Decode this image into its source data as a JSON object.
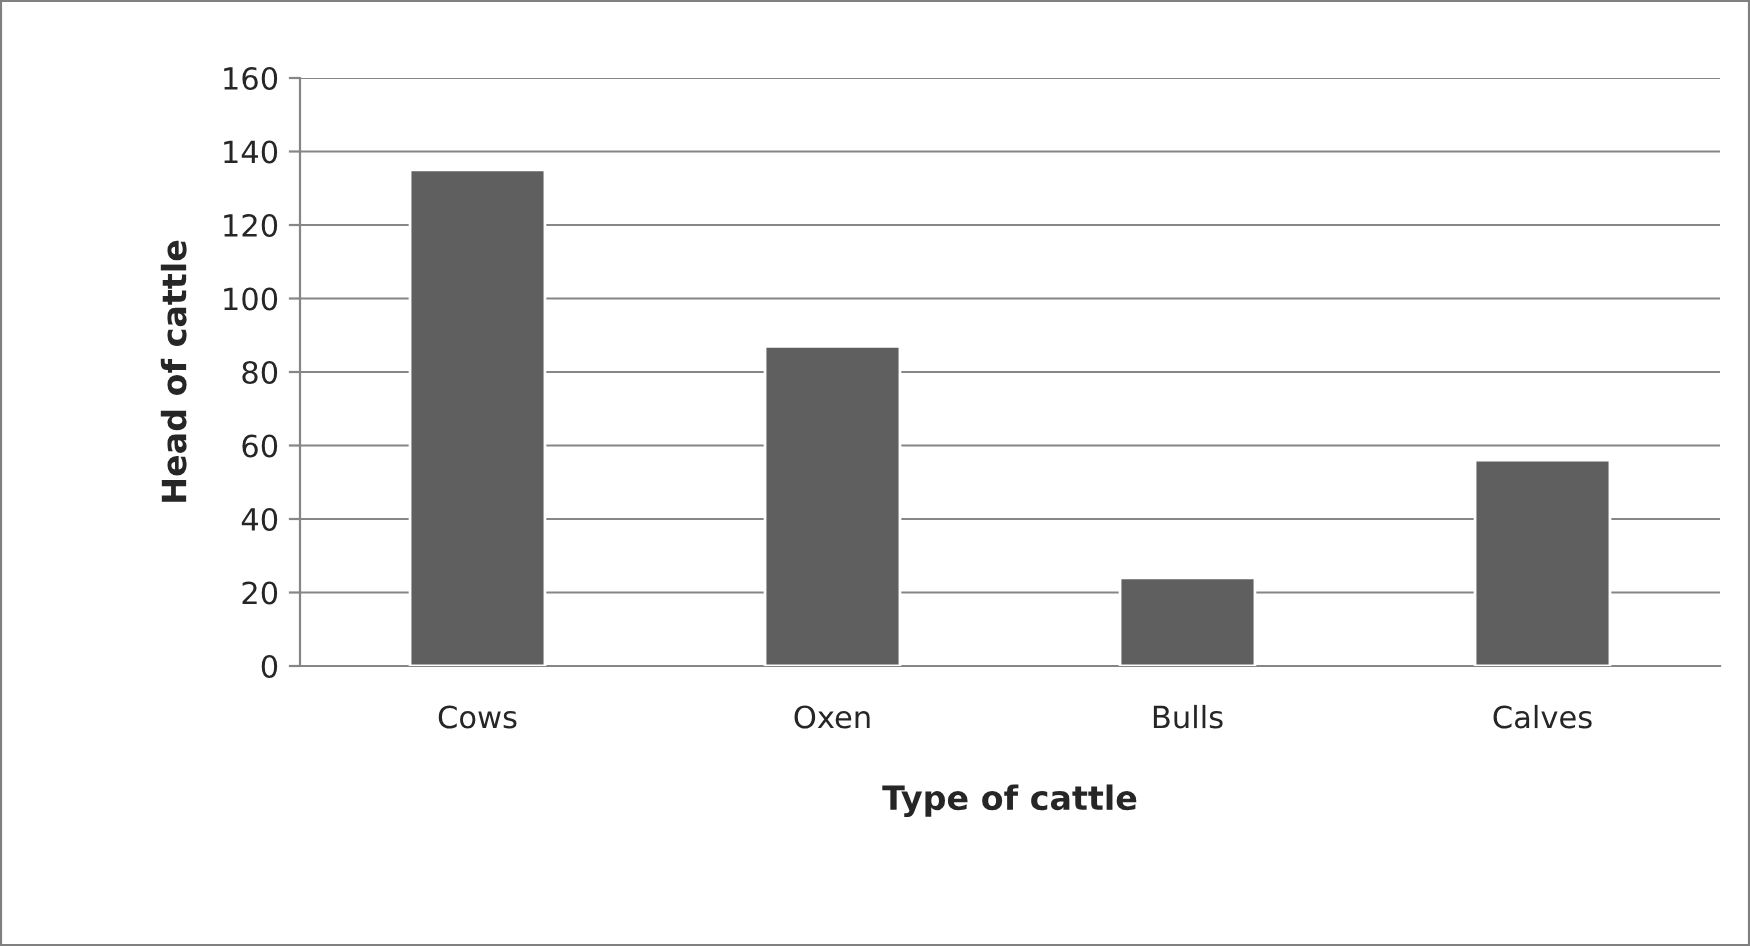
{
  "chart_data": {
    "type": "bar",
    "xlabel": "Type of cattle",
    "ylabel": "Head of cattle",
    "categories": [
      "Cows",
      "Oxen",
      "Bulls",
      "Calves"
    ],
    "values": [
      135,
      87,
      24,
      56
    ],
    "color": "#5f5f5f",
    "ylim": [
      0,
      160
    ],
    "yticks": [
      0,
      20,
      40,
      60,
      80,
      100,
      120,
      140,
      160
    ],
    "grid": "y",
    "legend": false
  }
}
